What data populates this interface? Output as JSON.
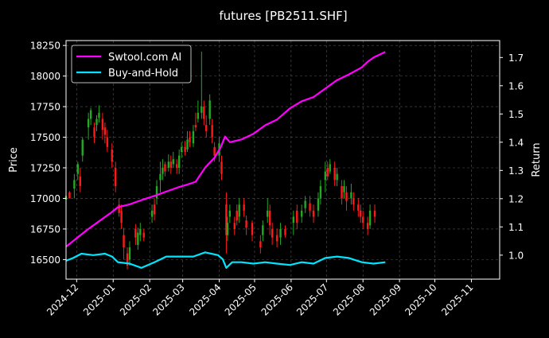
{
  "chart_data": {
    "type": "line",
    "title": "futures [PB2511.SHF]",
    "xlabel": "",
    "ylabel": "Price",
    "ylabel_right": "Return",
    "x_ticks": [
      "2024-12",
      "2025-01",
      "2025-02",
      "2025-03",
      "2025-04",
      "2025-05",
      "2025-06",
      "2025-07",
      "2025-08",
      "2025-09",
      "2025-10",
      "2025-11"
    ],
    "y_ticks_left": [
      "16500",
      "16750",
      "17000",
      "17250",
      "17500",
      "17750",
      "18000",
      "18250"
    ],
    "y_ticks_right": [
      "1.0",
      "1.1",
      "1.2",
      "1.3",
      "1.4",
      "1.5",
      "1.6",
      "1.7"
    ],
    "xlim": [
      "2024-11-22",
      "2025-11-25"
    ],
    "ylim_left": [
      16340,
      18290
    ],
    "ylim_right": [
      0.915,
      1.76
    ],
    "grid": true,
    "legend_position": "top-left",
    "colors": {
      "ai": "#ff00ff",
      "bh": "#00e5ff",
      "up": "#22aa22",
      "down": "#ff1a1a",
      "grid": "#555555",
      "frame": "#ffffff"
    },
    "series": [
      {
        "name": "Swtool.com AI",
        "color": "#ff00ff",
        "points": [
          [
            "2024-11-22",
            1.03
          ],
          [
            "2024-12-01",
            1.06
          ],
          [
            "2024-12-10",
            1.09
          ],
          [
            "2024-12-20",
            1.12
          ],
          [
            "2024-12-30",
            1.15
          ],
          [
            "2025-01-05",
            1.17
          ],
          [
            "2025-01-15",
            1.18
          ],
          [
            "2025-01-25",
            1.195
          ],
          [
            "2025-02-05",
            1.21
          ],
          [
            "2025-02-15",
            1.225
          ],
          [
            "2025-02-25",
            1.24
          ],
          [
            "2025-03-05",
            1.25
          ],
          [
            "2025-03-12",
            1.26
          ],
          [
            "2025-03-20",
            1.31
          ],
          [
            "2025-03-28",
            1.345
          ],
          [
            "2025-04-02",
            1.38
          ],
          [
            "2025-04-06",
            1.42
          ],
          [
            "2025-04-10",
            1.4
          ],
          [
            "2025-04-20",
            1.41
          ],
          [
            "2025-04-30",
            1.43
          ],
          [
            "2025-05-10",
            1.46
          ],
          [
            "2025-05-20",
            1.48
          ],
          [
            "2025-05-31",
            1.52
          ],
          [
            "2025-06-10",
            1.545
          ],
          [
            "2025-06-20",
            1.56
          ],
          [
            "2025-06-30",
            1.59
          ],
          [
            "2025-07-10",
            1.62
          ],
          [
            "2025-07-20",
            1.64
          ],
          [
            "2025-07-31",
            1.665
          ],
          [
            "2025-08-05",
            1.685
          ],
          [
            "2025-08-10",
            1.7
          ],
          [
            "2025-08-15",
            1.71
          ],
          [
            "2025-08-20",
            1.72
          ]
        ]
      },
      {
        "name": "Buy-and-Hold",
        "color": "#00e5ff",
        "points": [
          [
            "2024-11-22",
            0.98
          ],
          [
            "2024-11-28",
            0.99
          ],
          [
            "2024-12-05",
            1.005
          ],
          [
            "2024-12-15",
            1.0
          ],
          [
            "2024-12-25",
            1.005
          ],
          [
            "2024-12-31",
            0.995
          ],
          [
            "2025-01-05",
            0.975
          ],
          [
            "2025-01-15",
            0.97
          ],
          [
            "2025-01-25",
            0.955
          ],
          [
            "2025-02-05",
            0.975
          ],
          [
            "2025-02-15",
            0.995
          ],
          [
            "2025-02-28",
            0.995
          ],
          [
            "2025-03-10",
            0.995
          ],
          [
            "2025-03-20",
            1.01
          ],
          [
            "2025-03-31",
            1.0
          ],
          [
            "2025-04-04",
            0.985
          ],
          [
            "2025-04-07",
            0.955
          ],
          [
            "2025-04-12",
            0.975
          ],
          [
            "2025-04-20",
            0.975
          ],
          [
            "2025-04-30",
            0.97
          ],
          [
            "2025-05-10",
            0.975
          ],
          [
            "2025-05-20",
            0.97
          ],
          [
            "2025-05-31",
            0.965
          ],
          [
            "2025-06-10",
            0.975
          ],
          [
            "2025-06-20",
            0.97
          ],
          [
            "2025-06-30",
            0.99
          ],
          [
            "2025-07-10",
            0.995
          ],
          [
            "2025-07-20",
            0.99
          ],
          [
            "2025-07-31",
            0.975
          ],
          [
            "2025-08-10",
            0.97
          ],
          [
            "2025-08-20",
            0.975
          ]
        ]
      }
    ],
    "candles": [
      [
        "2024-11-22",
        16990,
        17020,
        16980,
        17030
      ],
      [
        "2024-11-25",
        17050,
        17000,
        17000,
        17060
      ],
      [
        "2024-11-29",
        17080,
        17150,
        17000,
        17200
      ],
      [
        "2024-12-02",
        17200,
        17280,
        17150,
        17300
      ],
      [
        "2024-12-04",
        17180,
        17100,
        17050,
        17250
      ],
      [
        "2024-12-06",
        17350,
        17480,
        17300,
        17500
      ],
      [
        "2024-12-11",
        17580,
        17650,
        17480,
        17700
      ],
      [
        "2024-12-13",
        17650,
        17720,
        17600,
        17740
      ],
      [
        "2024-12-16",
        17580,
        17500,
        17450,
        17620
      ],
      [
        "2024-12-18",
        17600,
        17650,
        17550,
        17680
      ],
      [
        "2024-12-20",
        17660,
        17700,
        17620,
        17760
      ],
      [
        "2024-12-23",
        17650,
        17560,
        17480,
        17700
      ],
      [
        "2024-12-25",
        17580,
        17520,
        17450,
        17620
      ],
      [
        "2024-12-27",
        17500,
        17420,
        17380,
        17560
      ],
      [
        "2024-12-31",
        17400,
        17300,
        17250,
        17450
      ],
      [
        "2025-01-03",
        17250,
        17100,
        17050,
        17300
      ],
      [
        "2025-01-06",
        16950,
        16880,
        16850,
        17000
      ],
      [
        "2025-01-08",
        16900,
        16800,
        16750,
        16950
      ],
      [
        "2025-01-10",
        16700,
        16600,
        16500,
        16760
      ],
      [
        "2025-01-13",
        16550,
        16450,
        16420,
        16600
      ],
      [
        "2025-01-15",
        16500,
        16600,
        16450,
        16650
      ],
      [
        "2025-01-20",
        16750,
        16680,
        16620,
        16790
      ],
      [
        "2025-01-22",
        16620,
        16720,
        16580,
        16760
      ],
      [
        "2025-01-24",
        16700,
        16750,
        16650,
        16800
      ],
      [
        "2025-01-27",
        16720,
        16680,
        16650,
        16750
      ],
      [
        "2025-02-03",
        16850,
        16900,
        16800,
        16950
      ],
      [
        "2025-02-05",
        16950,
        16870,
        16820,
        17000
      ],
      [
        "2025-02-07",
        17000,
        17100,
        16950,
        17150
      ],
      [
        "2025-02-10",
        17150,
        17200,
        17050,
        17300
      ],
      [
        "2025-02-12",
        17200,
        17250,
        17150,
        17320
      ],
      [
        "2025-02-14",
        17280,
        17220,
        17180,
        17300
      ],
      [
        "2025-02-17",
        17250,
        17300,
        17220,
        17360
      ],
      [
        "2025-02-19",
        17300,
        17250,
        17200,
        17350
      ],
      [
        "2025-02-21",
        17280,
        17320,
        17250,
        17380
      ],
      [
        "2025-02-24",
        17280,
        17250,
        17200,
        17320
      ],
      [
        "2025-02-26",
        17250,
        17350,
        17200,
        17400
      ],
      [
        "2025-02-28",
        17380,
        17420,
        17330,
        17460
      ],
      [
        "2025-03-03",
        17420,
        17380,
        17350,
        17470
      ],
      [
        "2025-03-05",
        17400,
        17480,
        17380,
        17550
      ],
      [
        "2025-03-07",
        17500,
        17460,
        17420,
        17550
      ],
      [
        "2025-03-10",
        17450,
        17550,
        17420,
        17600
      ],
      [
        "2025-03-12",
        17600,
        17580,
        17550,
        17700
      ],
      [
        "2025-03-14",
        17650,
        17700,
        17620,
        17800
      ],
      [
        "2025-03-17",
        17700,
        17750,
        17650,
        18200
      ],
      [
        "2025-03-19",
        17750,
        17650,
        17600,
        17800
      ],
      [
        "2025-03-21",
        17600,
        17550,
        17500,
        17680
      ],
      [
        "2025-03-24",
        17650,
        17800,
        17600,
        17850
      ],
      [
        "2025-03-26",
        17600,
        17500,
        17450,
        17650
      ],
      [
        "2025-03-28",
        17420,
        17350,
        17300,
        17460
      ],
      [
        "2025-04-01",
        17350,
        17450,
        17300,
        17500
      ],
      [
        "2025-04-03",
        17300,
        17200,
        17150,
        17350
      ],
      [
        "2025-04-07",
        16950,
        16700,
        16550,
        17050
      ],
      [
        "2025-04-08",
        16700,
        16800,
        16650,
        16850
      ],
      [
        "2025-04-10",
        16850,
        16900,
        16800,
        16950
      ],
      [
        "2025-04-14",
        16800,
        16750,
        16700,
        16850
      ],
      [
        "2025-04-16",
        16900,
        16820,
        16780,
        16950
      ],
      [
        "2025-04-18",
        16850,
        16950,
        16800,
        17000
      ],
      [
        "2025-04-22",
        16950,
        16900,
        16850,
        17000
      ],
      [
        "2025-04-24",
        16820,
        16760,
        16700,
        16860
      ],
      [
        "2025-04-29",
        16800,
        16700,
        16650,
        16820
      ],
      [
        "2025-05-06",
        16650,
        16600,
        16550,
        16700
      ],
      [
        "2025-05-08",
        16700,
        16780,
        16650,
        16820
      ],
      [
        "2025-05-12",
        16850,
        16900,
        16800,
        17000
      ],
      [
        "2025-05-14",
        16900,
        16780,
        16700,
        16950
      ],
      [
        "2025-05-16",
        16750,
        16680,
        16620,
        16800
      ],
      [
        "2025-05-20",
        16700,
        16650,
        16600,
        16750
      ],
      [
        "2025-05-23",
        16680,
        16750,
        16620,
        16800
      ],
      [
        "2025-05-27",
        16750,
        16700,
        16680,
        16780
      ],
      [
        "2025-06-03",
        16800,
        16850,
        16700,
        16900
      ],
      [
        "2025-06-06",
        16900,
        16800,
        16750,
        16950
      ],
      [
        "2025-06-10",
        16850,
        16900,
        16800,
        16950
      ],
      [
        "2025-06-13",
        16920,
        16980,
        16880,
        17020
      ],
      [
        "2025-06-17",
        16960,
        16900,
        16850,
        17020
      ],
      [
        "2025-06-20",
        16900,
        16850,
        16800,
        16950
      ],
      [
        "2025-06-24",
        16900,
        17000,
        16850,
        17050
      ],
      [
        "2025-06-26",
        17000,
        17100,
        16950,
        17150
      ],
      [
        "2025-06-30",
        17150,
        17220,
        17050,
        17300
      ],
      [
        "2025-07-02",
        17250,
        17180,
        17150,
        17300
      ],
      [
        "2025-07-04",
        17220,
        17280,
        17200,
        17320
      ],
      [
        "2025-07-08",
        17250,
        17150,
        17100,
        17300
      ],
      [
        "2025-07-10",
        17150,
        17200,
        17100,
        17250
      ],
      [
        "2025-07-14",
        17100,
        17000,
        16950,
        17150
      ],
      [
        "2025-07-16",
        17050,
        17100,
        17000,
        17150
      ],
      [
        "2025-07-18",
        17050,
        16980,
        16900,
        17100
      ],
      [
        "2025-07-22",
        17000,
        17050,
        16950,
        17120
      ],
      [
        "2025-07-24",
        17000,
        16950,
        16900,
        17050
      ],
      [
        "2025-07-28",
        16950,
        16900,
        16850,
        17000
      ],
      [
        "2025-07-30",
        16900,
        16850,
        16800,
        16950
      ],
      [
        "2025-08-01",
        16850,
        16800,
        16750,
        16900
      ],
      [
        "2025-08-05",
        16800,
        16750,
        16700,
        16850
      ],
      [
        "2025-08-07",
        16780,
        16900,
        16750,
        16950
      ],
      [
        "2025-08-11",
        16900,
        16850,
        16800,
        16950
      ]
    ]
  }
}
